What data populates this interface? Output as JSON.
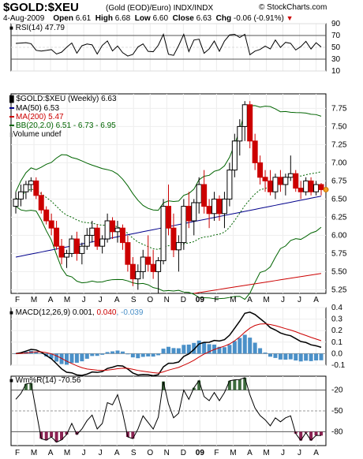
{
  "header": {
    "title": "$GOLD:$XEU",
    "subtitle": "(Gold (EOD)/Euro)  INDX/INDX",
    "brand": "© StockCharts.com",
    "date": "4-Aug-2009",
    "open_label": "Open",
    "open": "6.61",
    "high_label": "High",
    "high": "6.68",
    "low_label": "Low",
    "low": "6.60",
    "close_label": "Close",
    "close": "6.63",
    "chg_label": "Chg",
    "chg": "-0.06 (-0.91%)"
  },
  "rsi_panel": {
    "label": "RSI(14) 47.79",
    "ticks": [
      "90",
      "70",
      "50",
      "30",
      "10"
    ]
  },
  "price_panel": {
    "label": "$GOLD:$XEU (Weekly) 6.63",
    "legend": [
      {
        "text": "MA(50) 6.53",
        "color": "#00008b"
      },
      {
        "text": "MA(200) 5.47",
        "color": "#cc0000"
      },
      {
        "text": "BB(20,2.0) 6.51 - 6.73 - 6.95",
        "color": "#006400"
      },
      {
        "text": "Volume undef",
        "color": "#888888"
      }
    ],
    "ticks": [
      "7.75",
      "7.50",
      "7.25",
      "7.00",
      "6.75",
      "6.50",
      "6.25",
      "6.00",
      "5.75",
      "5.50",
      "5.25"
    ]
  },
  "macd_panel": {
    "label_prefix": "MACD(12,26,9) 0.001, ",
    "label_signal": "0.040",
    "label_hist": ", -0.039",
    "ticks": [
      "0.4",
      "0.3",
      "0.2",
      "0.1",
      "0.0",
      "-0.1"
    ]
  },
  "wr_panel": {
    "label": "Wm%R(14) -70.56",
    "ticks": [
      "-20",
      "-50",
      "-80"
    ]
  },
  "x_labels": [
    "F",
    "M",
    "A",
    "M",
    "J",
    "J",
    "A",
    "S",
    "O",
    "N",
    "D",
    "09",
    "F",
    "M",
    "A",
    "M",
    "J",
    "J",
    "A"
  ],
  "colors": {
    "up": "#000000",
    "down": "#cc0000",
    "ma50": "#00008b",
    "ma200": "#cc0000",
    "bb": "#006400",
    "signal": "#cc0000",
    "hist": "#4a90c8",
    "wr_fill": "#3d6b3d"
  },
  "chart_data": {
    "type": "candlestick",
    "title": "$GOLD:$XEU (Weekly)",
    "x_axis_months": [
      "Feb 2008",
      "Mar",
      "Apr",
      "May",
      "Jun",
      "Jul",
      "Aug",
      "Sep",
      "Oct",
      "Nov",
      "Dec",
      "Jan 2009",
      "Feb",
      "Mar",
      "Apr",
      "May",
      "Jun",
      "Jul",
      "Aug"
    ],
    "ohlc_weekly": [
      [
        6.4,
        6.6,
        6.3,
        6.5
      ],
      [
        6.5,
        6.7,
        6.4,
        6.6
      ],
      [
        6.6,
        6.75,
        6.5,
        6.7
      ],
      [
        6.7,
        6.8,
        6.6,
        6.75
      ],
      [
        6.75,
        6.8,
        6.5,
        6.55
      ],
      [
        6.55,
        6.6,
        6.3,
        6.35
      ],
      [
        6.35,
        6.4,
        6.15,
        6.2
      ],
      [
        6.2,
        6.3,
        6.0,
        6.1
      ],
      [
        6.1,
        6.2,
        5.8,
        5.85
      ],
      [
        5.85,
        5.95,
        5.6,
        5.7
      ],
      [
        5.7,
        5.8,
        5.55,
        5.75
      ],
      [
        5.75,
        6.0,
        5.7,
        5.95
      ],
      [
        5.95,
        6.05,
        5.65,
        5.75
      ],
      [
        5.75,
        5.9,
        5.6,
        5.85
      ],
      [
        5.85,
        6.1,
        5.8,
        6.0
      ],
      [
        6.0,
        6.2,
        5.9,
        6.1
      ],
      [
        6.1,
        6.15,
        5.8,
        5.85
      ],
      [
        5.85,
        6.0,
        5.75,
        5.95
      ],
      [
        5.95,
        6.3,
        5.9,
        6.2
      ],
      [
        6.2,
        6.25,
        5.95,
        6.05
      ],
      [
        6.05,
        6.2,
        5.9,
        6.1
      ],
      [
        6.1,
        6.15,
        5.8,
        5.9
      ],
      [
        5.9,
        6.0,
        5.5,
        5.6
      ],
      [
        5.6,
        5.7,
        5.3,
        5.4
      ],
      [
        5.4,
        5.6,
        5.25,
        5.5
      ],
      [
        5.5,
        5.8,
        5.4,
        5.7
      ],
      [
        5.7,
        6.0,
        5.5,
        5.6
      ],
      [
        5.6,
        5.8,
        5.4,
        5.5
      ],
      [
        5.5,
        5.7,
        5.2,
        5.65
      ],
      [
        5.65,
        6.5,
        5.6,
        6.4
      ],
      [
        6.4,
        6.7,
        6.0,
        6.1
      ],
      [
        6.1,
        6.3,
        5.7,
        5.8
      ],
      [
        5.8,
        6.0,
        5.5,
        5.9
      ],
      [
        5.9,
        6.5,
        5.8,
        6.4
      ],
      [
        6.4,
        6.6,
        6.1,
        6.2
      ],
      [
        6.2,
        6.5,
        6.0,
        6.45
      ],
      [
        6.45,
        6.8,
        6.3,
        6.7
      ],
      [
        6.7,
        6.9,
        6.3,
        6.4
      ],
      [
        6.4,
        6.5,
        6.1,
        6.3
      ],
      [
        6.3,
        6.6,
        6.2,
        6.5
      ],
      [
        6.5,
        6.55,
        6.2,
        6.3
      ],
      [
        6.3,
        6.6,
        6.1,
        6.5
      ],
      [
        6.5,
        7.0,
        6.4,
        6.9
      ],
      [
        6.9,
        7.4,
        6.8,
        7.3
      ],
      [
        7.3,
        7.6,
        7.1,
        7.5
      ],
      [
        7.5,
        7.85,
        7.3,
        7.8
      ],
      [
        7.8,
        7.85,
        7.2,
        7.3
      ],
      [
        7.3,
        7.4,
        6.9,
        7.0
      ],
      [
        7.0,
        7.1,
        6.7,
        6.8
      ],
      [
        6.8,
        6.9,
        6.6,
        6.75
      ],
      [
        6.75,
        6.9,
        6.55,
        6.6
      ],
      [
        6.6,
        6.85,
        6.5,
        6.8
      ],
      [
        6.8,
        6.9,
        6.6,
        6.7
      ],
      [
        6.7,
        6.85,
        6.55,
        6.8
      ],
      [
        6.8,
        7.1,
        6.75,
        6.85
      ],
      [
        6.85,
        6.9,
        6.6,
        6.65
      ],
      [
        6.65,
        6.75,
        6.5,
        6.6
      ],
      [
        6.6,
        6.8,
        6.55,
        6.75
      ],
      [
        6.75,
        6.8,
        6.55,
        6.6
      ],
      [
        6.6,
        6.75,
        6.55,
        6.7
      ],
      [
        6.7,
        6.72,
        6.55,
        6.63
      ]
    ],
    "rsi_range": [
      10,
      90
    ],
    "price_range": [
      5.2,
      7.95
    ],
    "macd_range": [
      -0.1,
      0.4
    ],
    "wr_range": [
      -100,
      0
    ]
  }
}
